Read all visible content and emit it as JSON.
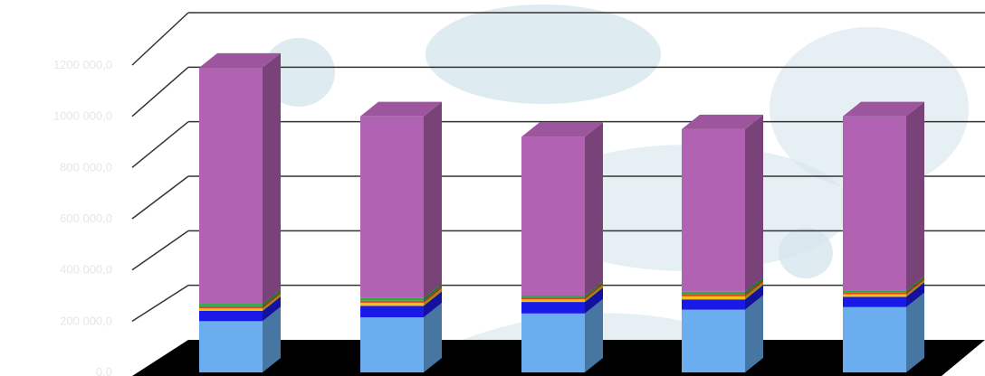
{
  "chart_data": {
    "type": "bar",
    "stacked": true,
    "style": "3d",
    "categories": [
      "",
      "",
      "",
      "",
      ""
    ],
    "ylim": [
      0,
      1200000
    ],
    "yticks": [
      {
        "value": 0,
        "label": "0,0"
      },
      {
        "value": 200000,
        "label": "200 000,0"
      },
      {
        "value": 400000,
        "label": "400 000,0"
      },
      {
        "value": 600000,
        "label": "600 000,0"
      },
      {
        "value": 800000,
        "label": "800 000,0"
      },
      {
        "value": 1000000,
        "label": "1000 000,0"
      },
      {
        "value": 1200000,
        "label": "1200 000,0"
      }
    ],
    "grid": true,
    "series": [
      {
        "color": "#6aaef0",
        "values": [
          200000,
          215000,
          230000,
          245000,
          255000
        ]
      },
      {
        "color": "#1a1ae8",
        "values": [
          40000,
          45000,
          45000,
          40000,
          40000
        ]
      },
      {
        "color": "#f2c018",
        "values": [
          10000,
          12000,
          10000,
          12000,
          10000
        ]
      },
      {
        "color": "#e24a1e",
        "values": [
          8000,
          8000,
          8000,
          8000,
          8000
        ]
      },
      {
        "color": "#2fa84a",
        "values": [
          10000,
          10000,
          7000,
          10000,
          7000
        ]
      },
      {
        "color": "#b262b2",
        "values": [
          922000,
          710000,
          620000,
          635000,
          680000
        ]
      }
    ]
  }
}
